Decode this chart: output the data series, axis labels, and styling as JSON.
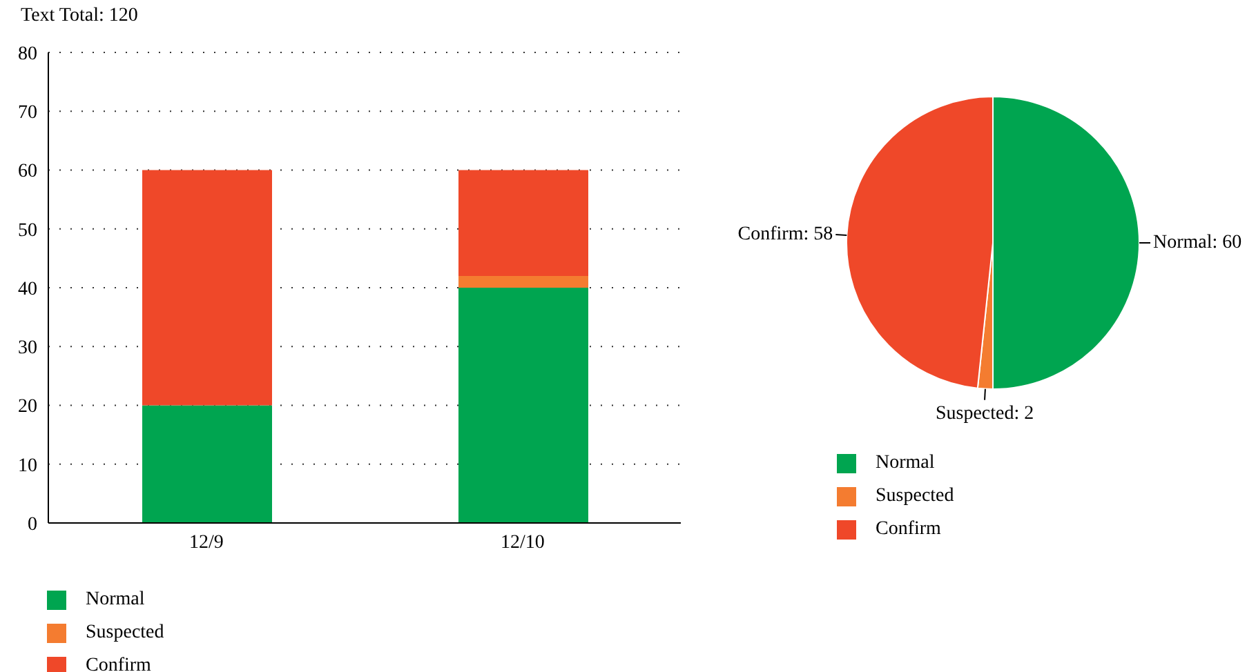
{
  "chart_data": [
    {
      "type": "bar",
      "title": "Text Total: 120",
      "categories": [
        "12/9",
        "12/10"
      ],
      "stacked": true,
      "series": [
        {
          "name": "Normal",
          "color": "#00a550",
          "values": [
            20,
            40
          ]
        },
        {
          "name": "Suspected",
          "color": "#f47c30",
          "values": [
            0,
            2
          ]
        },
        {
          "name": "Confirm",
          "color": "#ef4829",
          "values": [
            40,
            18
          ]
        }
      ],
      "ylim": [
        0,
        80
      ],
      "yticks": [
        0,
        10,
        20,
        30,
        40,
        50,
        60,
        70,
        80
      ],
      "grid": "y",
      "legend": "bottom"
    },
    {
      "type": "pie",
      "categories": [
        "Normal",
        "Suspected",
        "Confirm"
      ],
      "values": [
        60,
        2,
        58
      ],
      "colors": [
        "#00a550",
        "#f47c30",
        "#ef4829"
      ],
      "value_labels": [
        "Normal: 60",
        "Suspected: 2",
        "Confirm: 58"
      ],
      "legend": "bottom"
    }
  ]
}
